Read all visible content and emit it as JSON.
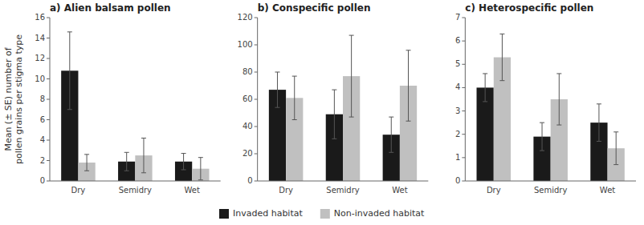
{
  "chart_data": [
    {
      "type": "bar",
      "title": "a) Alien balsam pollen",
      "y_label": "Mean (± SE) number of\npollen grains per stigma type",
      "categories": [
        "Dry",
        "Semidry",
        "Wet"
      ],
      "series": [
        {
          "name": "Invaded habitat",
          "color": "#1a1a1a",
          "values": [
            10.8,
            1.9,
            1.9
          ],
          "errors": [
            3.8,
            0.9,
            0.8
          ]
        },
        {
          "name": "Non-invaded habitat",
          "color": "#c0c0c0",
          "values": [
            1.8,
            2.5,
            1.2
          ],
          "errors": [
            0.8,
            1.7,
            1.1
          ]
        }
      ],
      "ylim": [
        0,
        16
      ],
      "yticks": [
        0,
        2,
        4,
        6,
        8,
        10,
        12,
        14,
        16
      ],
      "legend": "bottom"
    },
    {
      "type": "bar",
      "title": "b) Conspecific pollen",
      "categories": [
        "Dry",
        "Semidry",
        "Wet"
      ],
      "series": [
        {
          "name": "Invaded habitat",
          "color": "#1a1a1a",
          "values": [
            67,
            49,
            34
          ],
          "errors": [
            13,
            18,
            13
          ]
        },
        {
          "name": "Non-invaded habitat",
          "color": "#c0c0c0",
          "values": [
            61,
            77,
            70
          ],
          "errors": [
            16,
            30,
            26
          ]
        }
      ],
      "ylim": [
        0,
        120
      ],
      "yticks": [
        0,
        20,
        40,
        60,
        80,
        100,
        120
      ]
    },
    {
      "type": "bar",
      "title": "c) Heterospecific pollen",
      "categories": [
        "Dry",
        "Semidry",
        "Wet"
      ],
      "series": [
        {
          "name": "Invaded habitat",
          "color": "#1a1a1a",
          "values": [
            4.0,
            1.9,
            2.5
          ],
          "errors": [
            0.6,
            0.6,
            0.8
          ]
        },
        {
          "name": "Non-invaded habitat",
          "color": "#c0c0c0",
          "values": [
            5.3,
            3.5,
            1.4
          ],
          "errors": [
            1.0,
            1.1,
            0.7
          ]
        }
      ],
      "ylim": [
        0,
        7
      ],
      "yticks": [
        0,
        1,
        2,
        3,
        4,
        5,
        6,
        7
      ]
    }
  ]
}
